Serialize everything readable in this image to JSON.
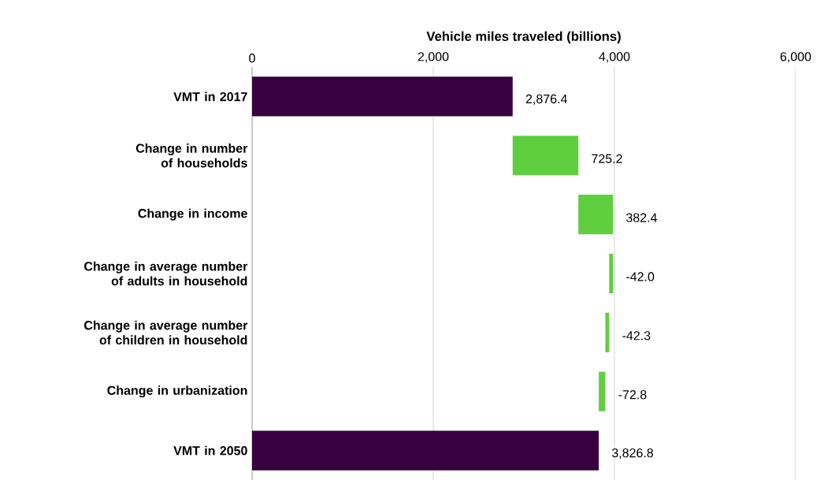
{
  "chart_data": {
    "type": "bar",
    "orientation": "horizontal",
    "xlabel": "Vehicle miles traveled (billions)",
    "categories": [
      "VMT in 2017",
      "Change in number of households",
      "Change in income",
      "Change in average number of adults in household",
      "Change in average number of children in household",
      "Change in urbanization",
      "VMT in 2050"
    ],
    "values": [
      2876.4,
      725.2,
      382.4,
      -42.0,
      -42.3,
      -72.8,
      3826.8
    ],
    "base": [
      0,
      2876.4,
      3601.6,
      3984.0,
      3942.0,
      3899.7,
      0
    ],
    "colors": [
      "#380040",
      "#5fce3f",
      "#5fce3f",
      "#5fce3f",
      "#5fce3f",
      "#5fce3f",
      "#380040"
    ],
    "value_labels": [
      "2,876.4",
      "725.2",
      "382.4",
      "-42.0",
      "-42.3",
      "-72.8",
      "3,826.8"
    ],
    "xlim": [
      0,
      6000
    ],
    "xticks": [
      0,
      {
        "value": 2000,
        "label": "2,000"
      },
      {
        "value": 4000,
        "label": "4,000"
      },
      {
        "value": 6000,
        "label": "6,000"
      }
    ],
    "grid": "x"
  }
}
